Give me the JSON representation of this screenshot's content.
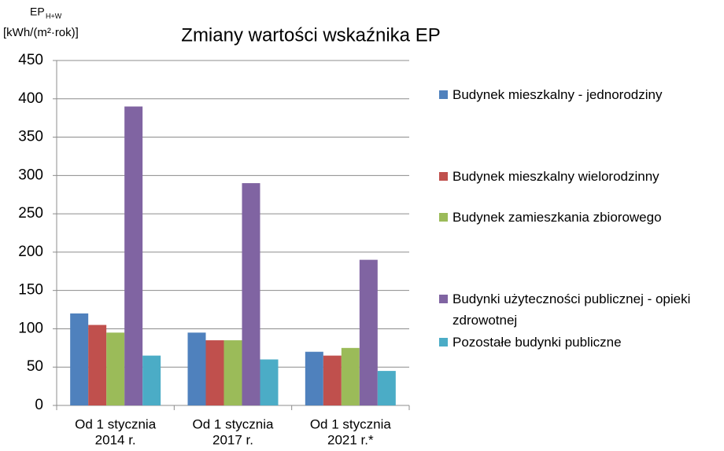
{
  "chart_data": {
    "type": "bar",
    "title": "Zmiany wartości wskaźnika EP",
    "ylabel": "EP",
    "ylabel_sub": "H+W",
    "yunit": "[kWh/(m²·rok)]",
    "categories": [
      [
        "Od 1 stycznia",
        "2014 r."
      ],
      [
        "Od 1 stycznia",
        "2017 r."
      ],
      [
        "Od 1 stycznia",
        "2021 r.*"
      ]
    ],
    "series": [
      {
        "name": "Budynek mieszkalny - jednorodziny",
        "color": "#4f81bd",
        "values": [
          120,
          95,
          70
        ]
      },
      {
        "name": "Budynek mieszkalny wielorodzinny",
        "color": "#c0504d",
        "values": [
          105,
          85,
          65
        ]
      },
      {
        "name": "Budynek zamieszkania zbiorowego",
        "color": "#9bbb59",
        "values": [
          95,
          85,
          75
        ]
      },
      {
        "name": "Budynki użyteczności publicznej - opieki zdrowotnej",
        "color": "#8064a2",
        "values": [
          390,
          290,
          190
        ]
      },
      {
        "name": "Pozostałe budynki publiczne",
        "color": "#4bacc6",
        "values": [
          65,
          60,
          45
        ]
      }
    ],
    "ylim": [
      0,
      450
    ],
    "yticks": [
      0,
      50,
      100,
      150,
      200,
      250,
      300,
      350,
      400,
      450
    ],
    "grid": true,
    "legend": "right"
  }
}
